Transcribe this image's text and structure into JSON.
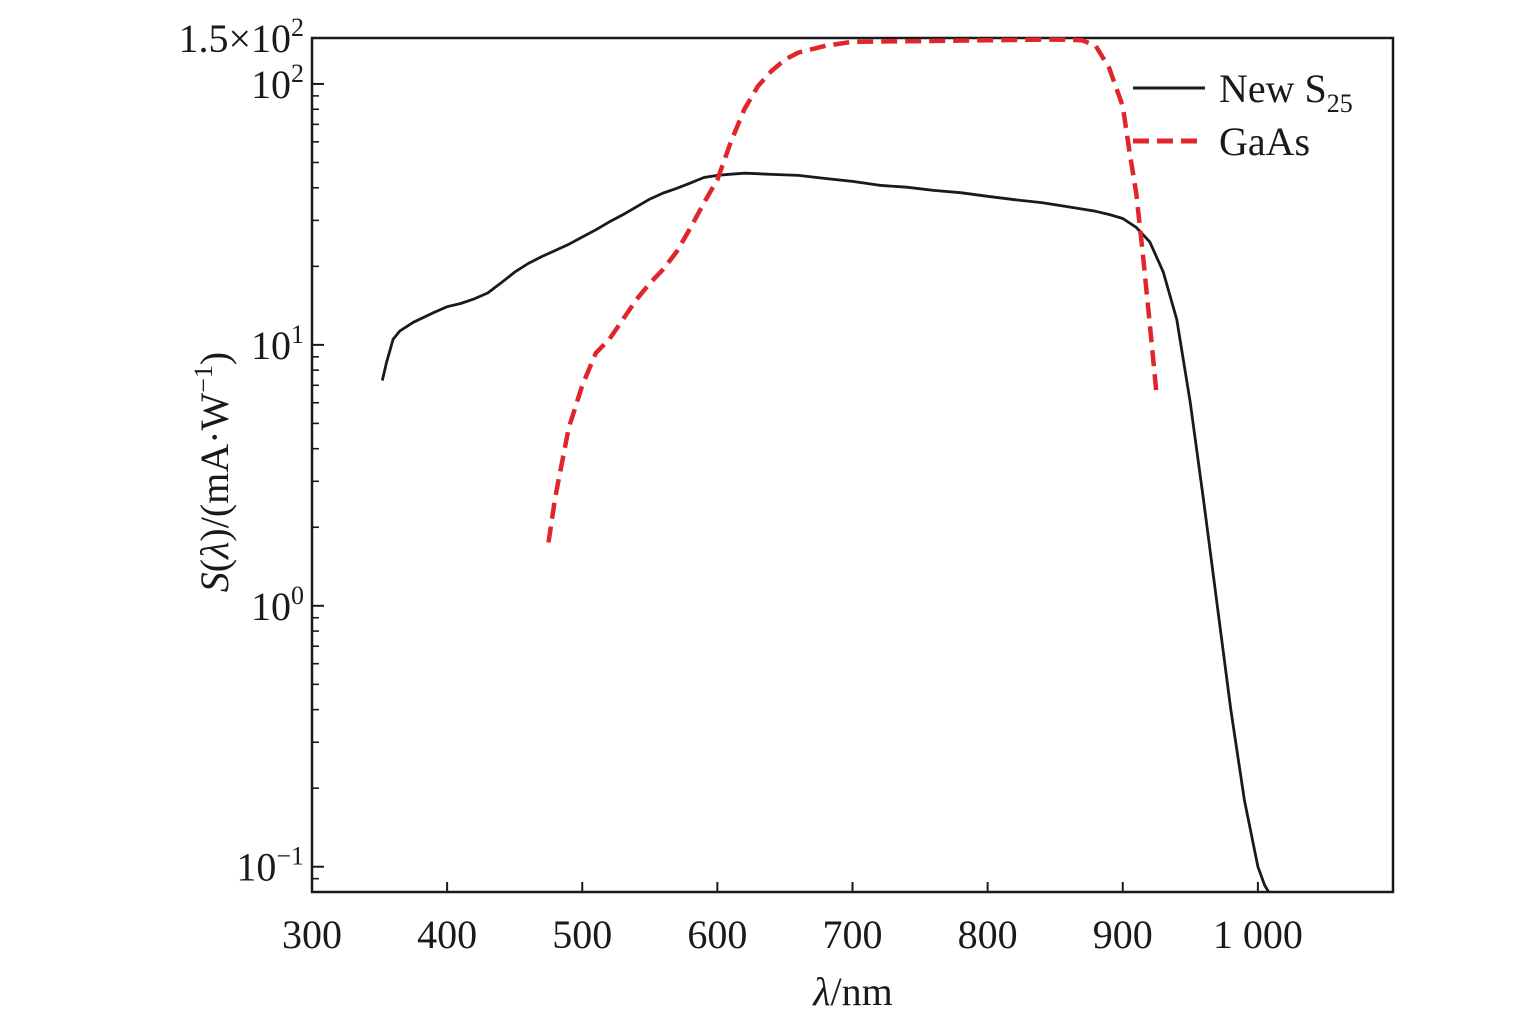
{
  "chart_data": {
    "type": "line",
    "title": "",
    "xlabel": {
      "symbol": "λ",
      "unit": "/nm"
    },
    "ylabel": {
      "symbol": "S",
      "paren_open": "(",
      "arg": "λ",
      "rest": ")/(mA·W",
      "exp": "−1",
      "close": ")"
    },
    "x_scale": "linear",
    "y_scale": "log",
    "xlim": [
      300,
      1100
    ],
    "ylim": [
      0.08,
      150
    ],
    "x_ticks": [
      {
        "value": 300,
        "label": "300"
      },
      {
        "value": 400,
        "label": "400"
      },
      {
        "value": 500,
        "label": "500"
      },
      {
        "value": 600,
        "label": "600"
      },
      {
        "value": 700,
        "label": "700"
      },
      {
        "value": 800,
        "label": "800"
      },
      {
        "value": 900,
        "label": "900"
      },
      {
        "value": 1000,
        "label": "1 000"
      }
    ],
    "y_ticks": [
      {
        "value": 0.1,
        "base": "10",
        "exp": "−1"
      },
      {
        "value": 1,
        "base": "10",
        "exp": "0"
      },
      {
        "value": 10,
        "base": "10",
        "exp": "1"
      },
      {
        "value": 100,
        "base": "10",
        "exp": "2"
      },
      {
        "value": 150,
        "base": "1.5×10",
        "exp": "2"
      }
    ],
    "legend_position": "top-right",
    "series": [
      {
        "name": "New S",
        "name_sub": "25",
        "style": "solid",
        "color": "#1a1a1a",
        "x": [
          352,
          355,
          360,
          365,
          375,
          390,
          400,
          410,
          420,
          430,
          440,
          450,
          460,
          470,
          480,
          490,
          500,
          510,
          520,
          530,
          540,
          550,
          560,
          570,
          580,
          590,
          600,
          610,
          620,
          630,
          640,
          660,
          680,
          700,
          720,
          740,
          760,
          780,
          800,
          820,
          840,
          860,
          880,
          890,
          900,
          910,
          920,
          930,
          940,
          950,
          960,
          970,
          980,
          990,
          1000,
          1005,
          1008
        ],
        "y": [
          7.3,
          8.5,
          10.5,
          11.3,
          12.2,
          13.3,
          14.0,
          14.4,
          15.0,
          15.8,
          17.3,
          19.0,
          20.5,
          21.8,
          23.0,
          24.3,
          25.9,
          27.6,
          29.6,
          31.5,
          33.8,
          36.2,
          38.2,
          39.8,
          41.7,
          43.8,
          44.6,
          45.1,
          45.5,
          45.3,
          45.0,
          44.6,
          43.4,
          42.3,
          40.9,
          40.2,
          39.1,
          38.3,
          37.1,
          36.0,
          35.1,
          33.8,
          32.5,
          31.6,
          30.5,
          28.2,
          24.8,
          19.0,
          12.5,
          6.0,
          2.5,
          1.0,
          0.4,
          0.18,
          0.1,
          0.085,
          0.08
        ]
      },
      {
        "name": "GaAs",
        "style": "dashed",
        "color": "#e0262b",
        "x": [
          475,
          480,
          490,
          500,
          510,
          520,
          530,
          540,
          550,
          560,
          570,
          580,
          590,
          600,
          610,
          620,
          630,
          640,
          650,
          660,
          680,
          700,
          750,
          800,
          850,
          870,
          880,
          890,
          900,
          905,
          910,
          915,
          920,
          925
        ],
        "y": [
          1.75,
          2.6,
          4.8,
          7.0,
          9.3,
          10.5,
          12.5,
          14.9,
          17.2,
          19.5,
          22.8,
          28.0,
          35.0,
          43.0,
          60.0,
          80.0,
          98.0,
          112.0,
          124.0,
          132.0,
          140.0,
          145.0,
          146.0,
          147.0,
          148.0,
          147.0,
          140.0,
          115.0,
          82.0,
          55.0,
          38.0,
          22.0,
          12.0,
          6.5
        ]
      }
    ]
  }
}
